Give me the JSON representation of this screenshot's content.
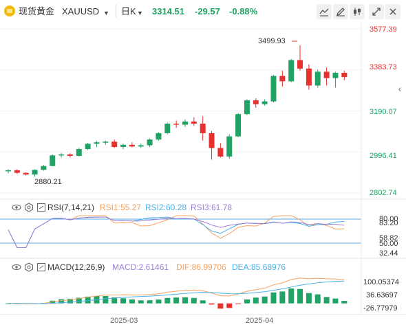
{
  "header": {
    "symbol_name": "现货黄金",
    "symbol_code": "XAUUSD",
    "interval": "日K",
    "price": "3314.51",
    "change": "-29.57",
    "change_pct": "-0.88%",
    "accent_green": "#21a366",
    "accent_red": "#e8302f"
  },
  "toolbar_icons": [
    "chart-line-icon",
    "pencil-icon",
    "candles-icon",
    "expand-icon",
    "close-icon"
  ],
  "price_axis": {
    "labels": [
      "3577.39",
      "3383.73",
      "3190.07",
      "2996.41",
      "2802.74"
    ],
    "colors": [
      "#e8302f",
      "#e8302f",
      "#21a366",
      "#21a366",
      "#21a366"
    ]
  },
  "annotations": {
    "high": "3499.93",
    "low": "2880.21"
  },
  "rsi": {
    "title": "RSI(7,14,21)",
    "rsi1": "RSI1:55.27",
    "rsi2": "RSI2:60.28",
    "rsi3": "RSI3:61.78",
    "colors": [
      "#f4a261",
      "#4ab0e8",
      "#9b7fd6"
    ],
    "axis": [
      "80.00",
      "83.20",
      "58.82",
      "50.00",
      "32.44"
    ]
  },
  "macd": {
    "title": "MACD(12,26,9)",
    "macd": "MACD:2.61461",
    "dif": "DIF:86.99706",
    "dea": "DEA:85.68976",
    "colors": [
      "#9b7fd6",
      "#f4a261",
      "#4ab0e8"
    ],
    "axis": [
      "100.05374",
      "36.63697",
      "-26.77979"
    ]
  },
  "x_axis": [
    "2025-03",
    "2025-04"
  ],
  "chart_data": {
    "type": "candlestick",
    "candles": [
      [
        2905,
        2915,
        2895,
        2910
      ],
      [
        2910,
        2915,
        2893,
        2898
      ],
      [
        2898,
        2900,
        2885,
        2890
      ],
      [
        2890,
        2915,
        2880,
        2912
      ],
      [
        2912,
        2935,
        2908,
        2930
      ],
      [
        2930,
        2985,
        2928,
        2980
      ],
      [
        2980,
        2992,
        2970,
        2985
      ],
      [
        2985,
        2990,
        2970,
        2978
      ],
      [
        2978,
        3015,
        2975,
        3010
      ],
      [
        3010,
        3040,
        3005,
        3035
      ],
      [
        3035,
        3048,
        3020,
        3042
      ],
      [
        3042,
        3050,
        3030,
        3045
      ],
      [
        3045,
        3055,
        3015,
        3020
      ],
      [
        3020,
        3035,
        3010,
        3030
      ],
      [
        3030,
        3042,
        3018,
        3022
      ],
      [
        3022,
        3035,
        3015,
        3028
      ],
      [
        3028,
        3060,
        3020,
        3055
      ],
      [
        3055,
        3090,
        3050,
        3085
      ],
      [
        3085,
        3135,
        3080,
        3130
      ],
      [
        3130,
        3145,
        3110,
        3125
      ],
      [
        3125,
        3150,
        3115,
        3140
      ],
      [
        3140,
        3160,
        3120,
        3130
      ],
      [
        3130,
        3165,
        3050,
        3085
      ],
      [
        3085,
        3095,
        2960,
        3015
      ],
      [
        3015,
        3038,
        2970,
        2975
      ],
      [
        2975,
        3080,
        2965,
        3070
      ],
      [
        3070,
        3180,
        3065,
        3175
      ],
      [
        3175,
        3245,
        3170,
        3240
      ],
      [
        3240,
        3250,
        3205,
        3222
      ],
      [
        3222,
        3245,
        3215,
        3235
      ],
      [
        3235,
        3360,
        3230,
        3355
      ],
      [
        3355,
        3380,
        3305,
        3330
      ],
      [
        3330,
        3435,
        3325,
        3430
      ],
      [
        3430,
        3500,
        3380,
        3390
      ],
      [
        3390,
        3410,
        3290,
        3310
      ],
      [
        3310,
        3385,
        3300,
        3375
      ],
      [
        3375,
        3395,
        3310,
        3345
      ],
      [
        3345,
        3375,
        3300,
        3370
      ],
      [
        3370,
        3380,
        3335,
        3350
      ]
    ],
    "title": "XAUUSD 日K"
  }
}
